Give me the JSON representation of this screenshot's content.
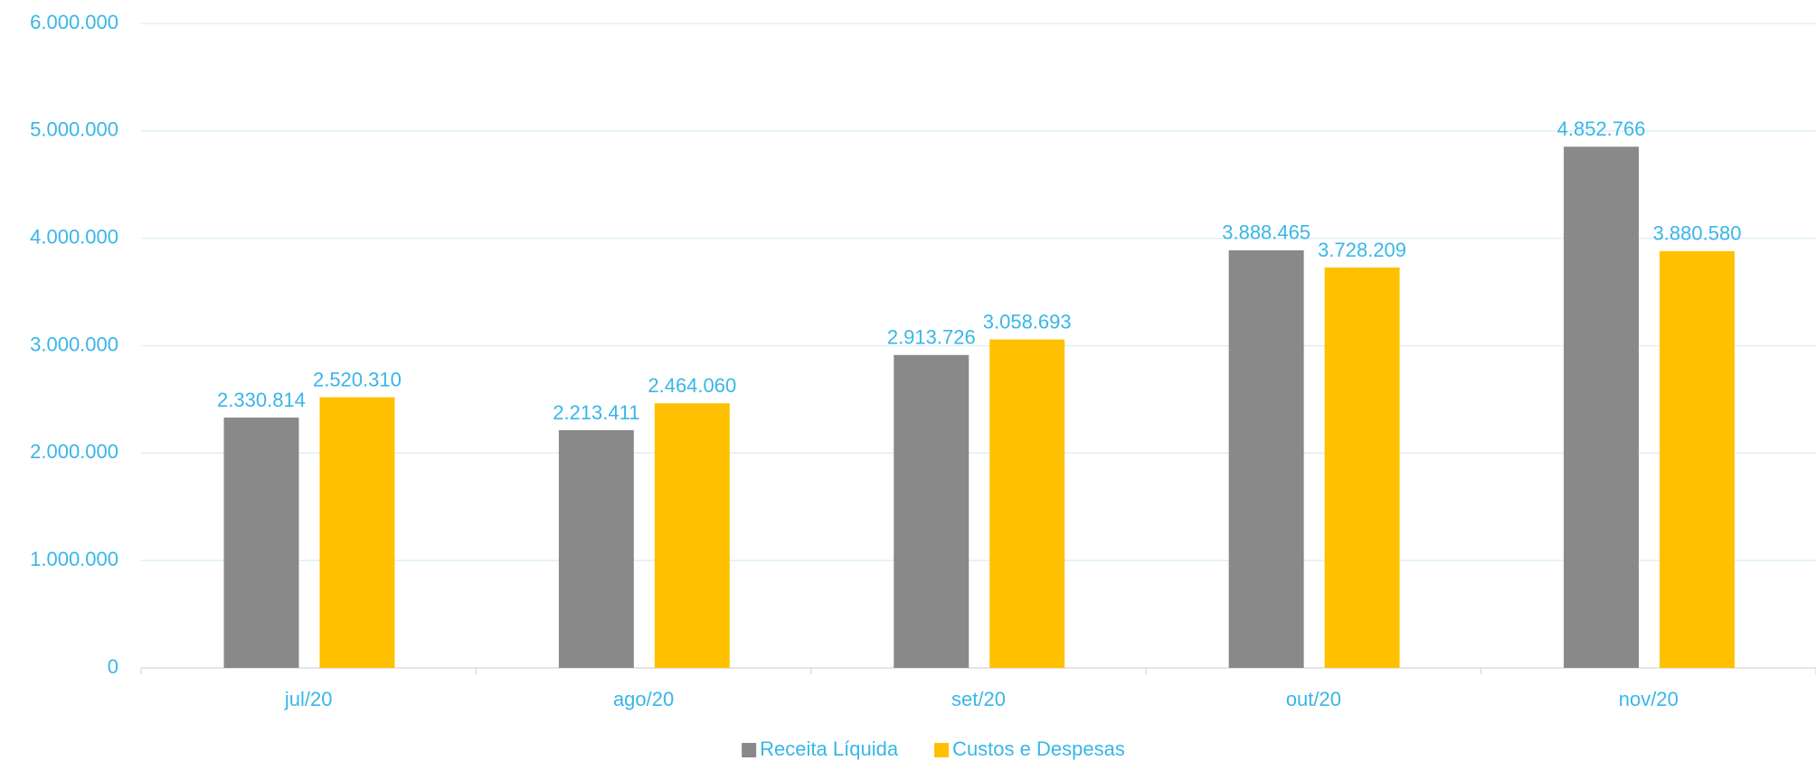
{
  "chart_data": {
    "type": "bar",
    "categories": [
      "jul/20",
      "ago/20",
      "set/20",
      "out/20",
      "nov/20"
    ],
    "series": [
      {
        "name": "Receita Líquida",
        "color": "#898989",
        "values": [
          2330814,
          2213411,
          2913726,
          3888465,
          4852766
        ],
        "value_labels": [
          "2.330.814",
          "2.213.411",
          "2.913.726",
          "3.888.465",
          "4.852.766"
        ]
      },
      {
        "name": "Custos e Despesas",
        "color": "#ffc000",
        "values": [
          2520310,
          2464060,
          3058693,
          3728209,
          3880580
        ],
        "value_labels": [
          "2.520.310",
          "2.464.060",
          "3.058.693",
          "3.728.209",
          "3.880.580"
        ]
      }
    ],
    "ylim": [
      0,
      6000000
    ],
    "yticks": [
      0,
      {
        "value": 1000000,
        "label": "1.000.000"
      },
      {
        "value": 2000000,
        "label": "2.000.000"
      },
      {
        "value": 3000000,
        "label": "3.000.000"
      },
      {
        "value": 4000000,
        "label": "4.000.000"
      },
      {
        "value": 5000000,
        "label": "5.000.000"
      },
      {
        "value": 6000000,
        "label": "6.000.000"
      }
    ],
    "grid": true,
    "legend": "bottom"
  }
}
